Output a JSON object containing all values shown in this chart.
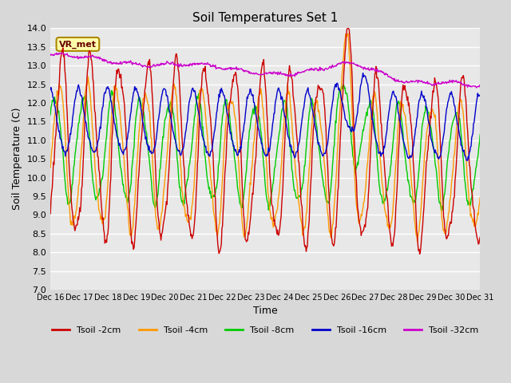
{
  "title": "Soil Temperatures Set 1",
  "xlabel": "Time",
  "ylabel": "Soil Temperature (C)",
  "ylim": [
    7.0,
    14.0
  ],
  "yticks": [
    7.0,
    7.5,
    8.0,
    8.5,
    9.0,
    9.5,
    10.0,
    10.5,
    11.0,
    11.5,
    12.0,
    12.5,
    13.0,
    13.5,
    14.0
  ],
  "colors": {
    "t2cm": "#cc0000",
    "t4cm": "#ff9900",
    "t8cm": "#00cc00",
    "t16cm": "#0000cc",
    "t32cm": "#cc00cc"
  },
  "legend_labels": [
    "Tsoil -2cm",
    "Tsoil -4cm",
    "Tsoil -8cm",
    "Tsoil -16cm",
    "Tsoil -32cm"
  ],
  "annotation_text": "VR_met",
  "bg_color": "#d8d8d8",
  "plot_bg": "#e8e8e8",
  "xtick_labels": [
    "Dec 16",
    "Dec 17",
    "Dec 18",
    "Dec 19",
    "Dec 20",
    "Dec 21",
    "Dec 22",
    "Dec 23",
    "Dec 24",
    "Dec 25",
    "Dec 26",
    "Dec 27",
    "Dec 28",
    "Dec 29",
    "Dec 30",
    "Dec 31"
  ],
  "xtick_positions": [
    0,
    1,
    2,
    3,
    4,
    5,
    6,
    7,
    8,
    9,
    10,
    11,
    12,
    13,
    14,
    15
  ]
}
